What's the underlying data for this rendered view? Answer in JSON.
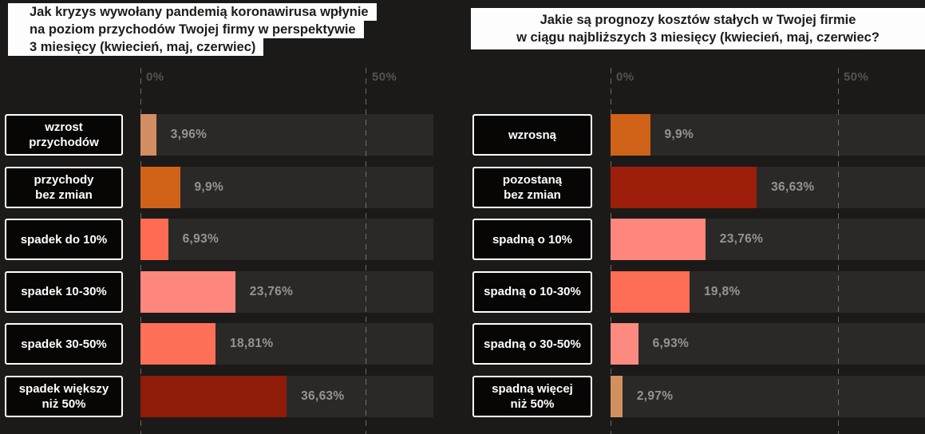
{
  "background_color": "#1c1a19",
  "track_color": "#2b2928",
  "charts": [
    {
      "title_lines": [
        "Jak kryzys wywołany pandemią koronawirusa wpłynie",
        "na poziom przychodów Twojej firmy w perspektywie",
        "3 miesięcy (kwiecień, maj, czerwiec)"
      ],
      "axis": {
        "ticks": [
          "0%",
          "50%"
        ]
      },
      "rows": [
        {
          "label_lines": [
            "wzrost",
            "przychodów"
          ],
          "value": 3.96,
          "value_label": "3,96%",
          "color": "#d28e62"
        },
        {
          "label_lines": [
            "przychody",
            "bez zmian"
          ],
          "value": 9.9,
          "value_label": "9,9%",
          "color": "#d06218"
        },
        {
          "label_lines": [
            "spadek do 10%"
          ],
          "value": 6.93,
          "value_label": "6,93%",
          "color": "#fd6b52"
        },
        {
          "label_lines": [
            "spadek 10-30%"
          ],
          "value": 23.76,
          "value_label": "23,76%",
          "color": "#fd877d"
        },
        {
          "label_lines": [
            "spadek 30-50%"
          ],
          "value": 18.81,
          "value_label": "18,81%",
          "color": "#fe7058"
        },
        {
          "label_lines": [
            "spadek większy",
            "niż 50%"
          ],
          "value": 36.63,
          "value_label": "36,63%",
          "color": "#8f1b09"
        }
      ]
    },
    {
      "title_lines": [
        "Jakie są prognozy kosztów stałych w Twojej firmie",
        "w ciągu najbliższych 3 miesięcy (kwiecień, maj, czerwiec?"
      ],
      "axis": {
        "ticks": [
          "0%",
          "50%"
        ]
      },
      "rows": [
        {
          "label_lines": [
            "wzrosną"
          ],
          "value": 9.9,
          "value_label": "9,9%",
          "color": "#d06218"
        },
        {
          "label_lines": [
            "pozostaną",
            "bez zmian"
          ],
          "value": 36.63,
          "value_label": "36,63%",
          "color": "#9c1e0b"
        },
        {
          "label_lines": [
            "spadną o 10%"
          ],
          "value": 23.76,
          "value_label": "23,76%",
          "color": "#fd877d"
        },
        {
          "label_lines": [
            "spadną o 10-30%"
          ],
          "value": 19.8,
          "value_label": "19,8%",
          "color": "#fe6d55"
        },
        {
          "label_lines": [
            "spadną o 30-50%"
          ],
          "value": 6.93,
          "value_label": "6,93%",
          "color": "#fd8a80"
        },
        {
          "label_lines": [
            "spadną więcej",
            "niż 50%"
          ],
          "value": 2.97,
          "value_label": "2,97%",
          "color": "#d0915e"
        }
      ]
    }
  ],
  "chart_data": [
    {
      "type": "bar",
      "orientation": "horizontal",
      "title": "Jak kryzys wywołany pandemią koronawirusa wpłynie na poziom przychodów Twojej firmy w perspektywie 3 miesięcy (kwiecień, maj, czerwiec)",
      "categories": [
        "wzrost przychodów",
        "przychody bez zmian",
        "spadek do 10%",
        "spadek 10-30%",
        "spadek 30-50%",
        "spadek większy niż 50%"
      ],
      "values": [
        3.96,
        9.9,
        6.93,
        23.76,
        18.81,
        36.63
      ],
      "value_labels": [
        "3,96%",
        "9,9%",
        "6,93%",
        "23,76%",
        "18,81%",
        "36,63%"
      ],
      "bar_colors": [
        "#d28e62",
        "#d06218",
        "#fd6b52",
        "#fd877d",
        "#fe7058",
        "#8f1b09"
      ],
      "xlabel": "",
      "ylabel": "",
      "unit": "%",
      "x_ticks": [
        "0%",
        "50%"
      ],
      "xlim": [
        0,
        73
      ],
      "grid": "dashed-vertical",
      "legend": "none"
    },
    {
      "type": "bar",
      "orientation": "horizontal",
      "title": "Jakie są prognozy kosztów stałych w Twojej firmie w ciągu najbliższych 3 miesięcy (kwiecień, maj, czerwiec?",
      "categories": [
        "wzrosną",
        "pozostaną bez zmian",
        "spadną o 10%",
        "spadną o 10-30%",
        "spadną o 30-50%",
        "spadną więcej niż 50%"
      ],
      "values": [
        9.9,
        36.63,
        23.76,
        19.8,
        6.93,
        2.97
      ],
      "value_labels": [
        "9,9%",
        "36,63%",
        "23,76%",
        "19,8%",
        "6,93%",
        "2,97%"
      ],
      "bar_colors": [
        "#d06218",
        "#9c1e0b",
        "#fd877d",
        "#fe6d55",
        "#fd8a80",
        "#d0915e"
      ],
      "xlabel": "",
      "ylabel": "",
      "unit": "%",
      "x_ticks": [
        "0%",
        "50%"
      ],
      "xlim": [
        0,
        79
      ],
      "grid": "dashed-vertical",
      "legend": "none"
    }
  ]
}
